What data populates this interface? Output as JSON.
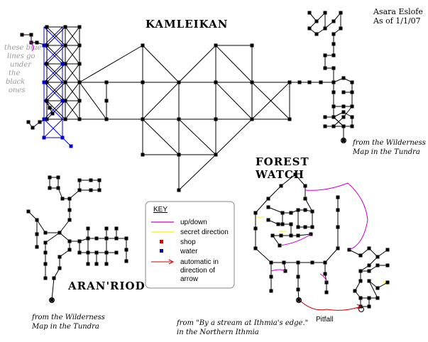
{
  "credit": {
    "author": "Asara Eslofe",
    "date": "As of 1/1/07"
  },
  "regions": {
    "kamleikan": "KAMLEIKAN",
    "forest_watch_line1": "FOREST",
    "forest_watch_line2": "WATCH",
    "aranriod": "ARAN'RIOD"
  },
  "hint": [
    "these blue",
    "lines go",
    "under",
    "the",
    "black",
    "ones"
  ],
  "notes": {
    "tundra_east_1": "from the Wilderness",
    "tundra_east_2": "Map in the Tundra",
    "tundra_west_1": "from the Wilderness",
    "tundra_west_2": "Map in the Tundra",
    "ithmia_1": "from \"By a stream at Ithmia's edge.\"",
    "ithmia_2": "in the Northern Ithmia",
    "pitfall": "Pitfall"
  },
  "key": {
    "title": "KEY",
    "items": [
      {
        "label": "up/down",
        "color": "#cc00cc",
        "symbol": "line"
      },
      {
        "label": "secret direction",
        "color": "#ffee00",
        "symbol": "line"
      },
      {
        "label": "shop",
        "color": "#dd0000",
        "symbol": "square"
      },
      {
        "label": "water",
        "color": "#0000cc",
        "symbol": "square"
      },
      {
        "label": "automatic in",
        "color": "#cc0000",
        "symbol": "arrow"
      }
    ],
    "auto_cont_1": "direction of",
    "auto_cont_2": "arrow"
  },
  "colors": {
    "room": "#000000",
    "link": "#000000",
    "water_link": "#0000cc",
    "updown": "#cc00cc",
    "secret": "#ffee00",
    "shop": "#dd0000",
    "water": "#0000cc",
    "auto": "#cc0000"
  }
}
